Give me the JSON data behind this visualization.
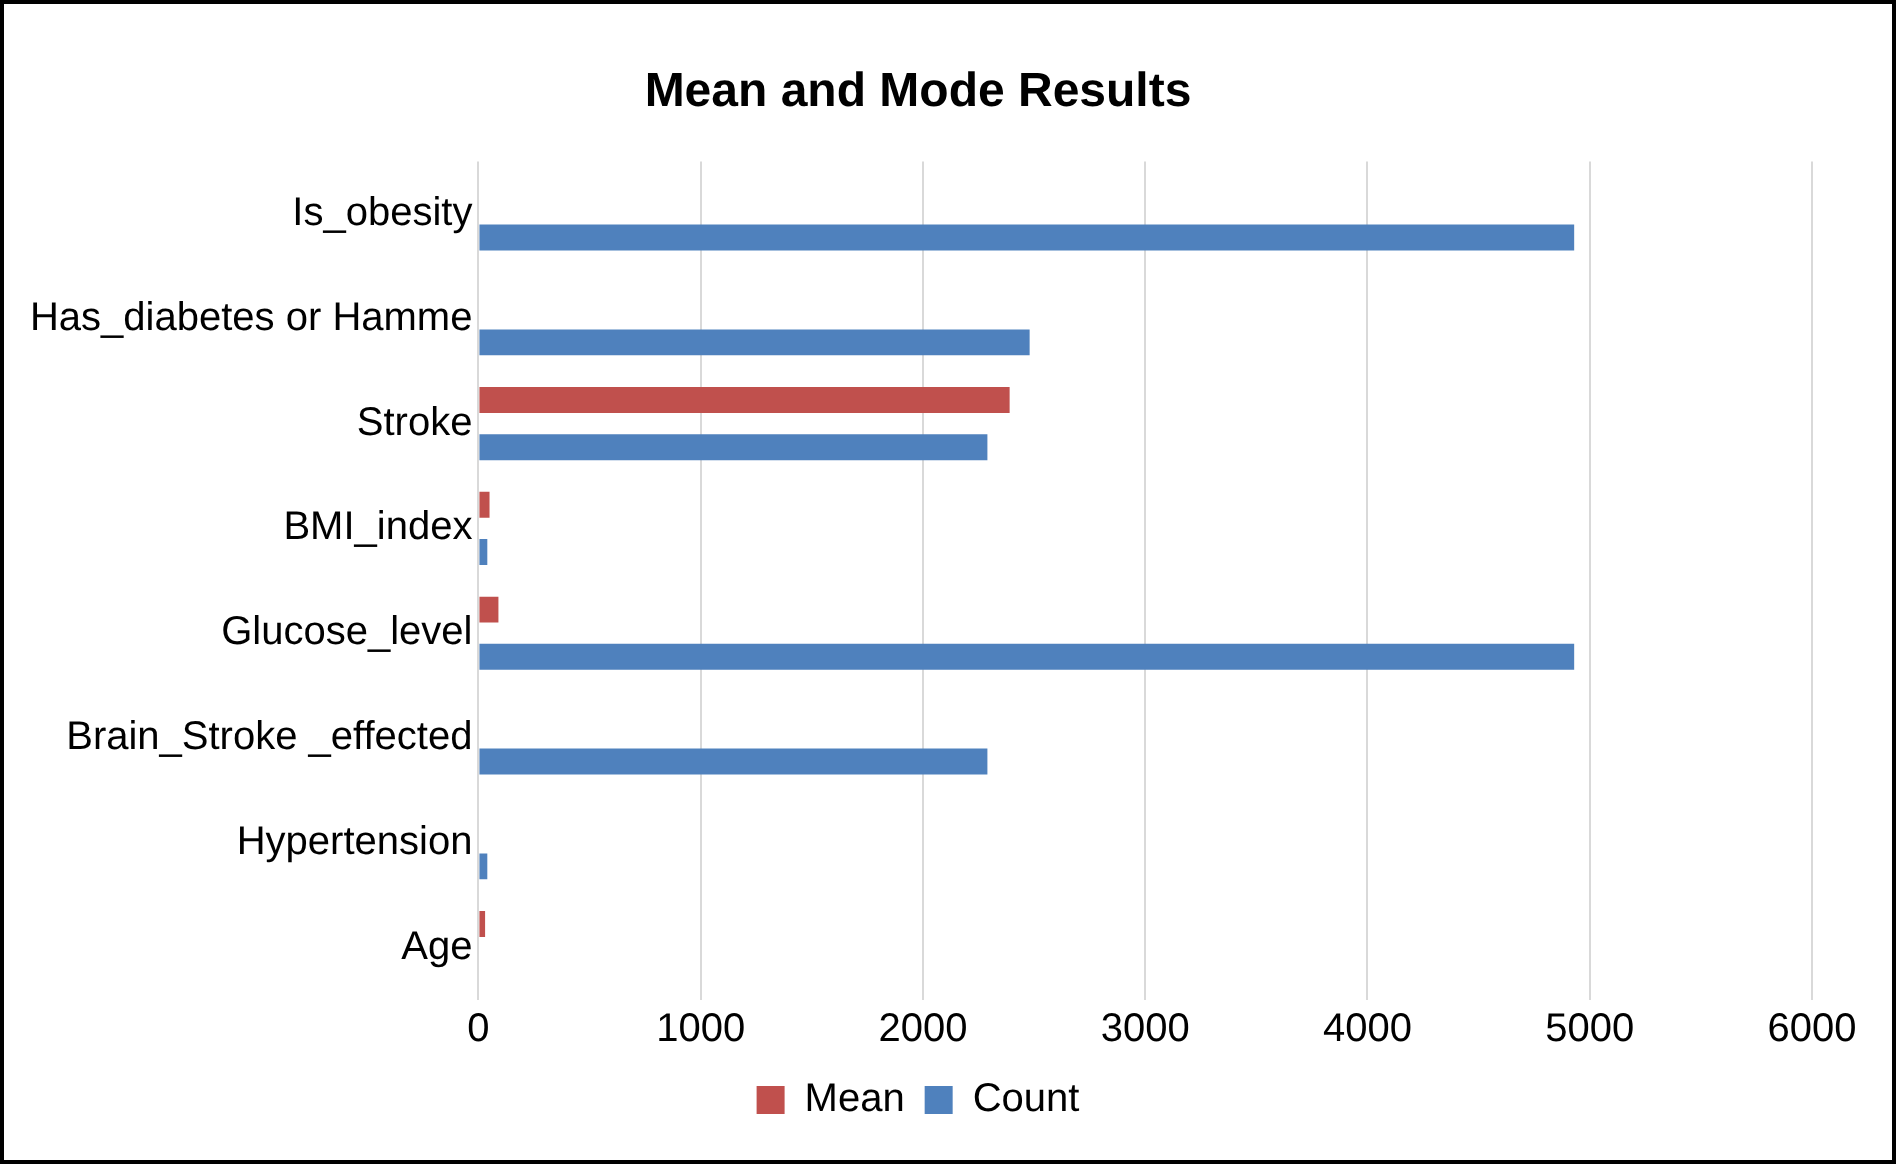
{
  "chart_data": {
    "type": "bar",
    "orientation": "horizontal",
    "title": "Mean and Mode Results",
    "categories": [
      "Is_obesity",
      "Has_diabetes or Hamme",
      "Stroke",
      "BMI_index",
      "Glucose_level",
      "Brain_Stroke _effected",
      "Hypertension",
      "Age"
    ],
    "series": [
      {
        "name": "Mean",
        "color": "#c0504d",
        "values": [
          null,
          null,
          2390,
          50,
          90,
          null,
          null,
          30
        ]
      },
      {
        "name": "Count",
        "color": "#4f81bd",
        "values": [
          4930,
          2480,
          2290,
          40,
          4930,
          2290,
          40,
          null
        ]
      }
    ],
    "xlim": [
      0,
      6000
    ],
    "xticks": [
      0,
      1000,
      2000,
      3000,
      4000,
      5000,
      6000
    ],
    "grid": "x",
    "legend": "bottom"
  }
}
